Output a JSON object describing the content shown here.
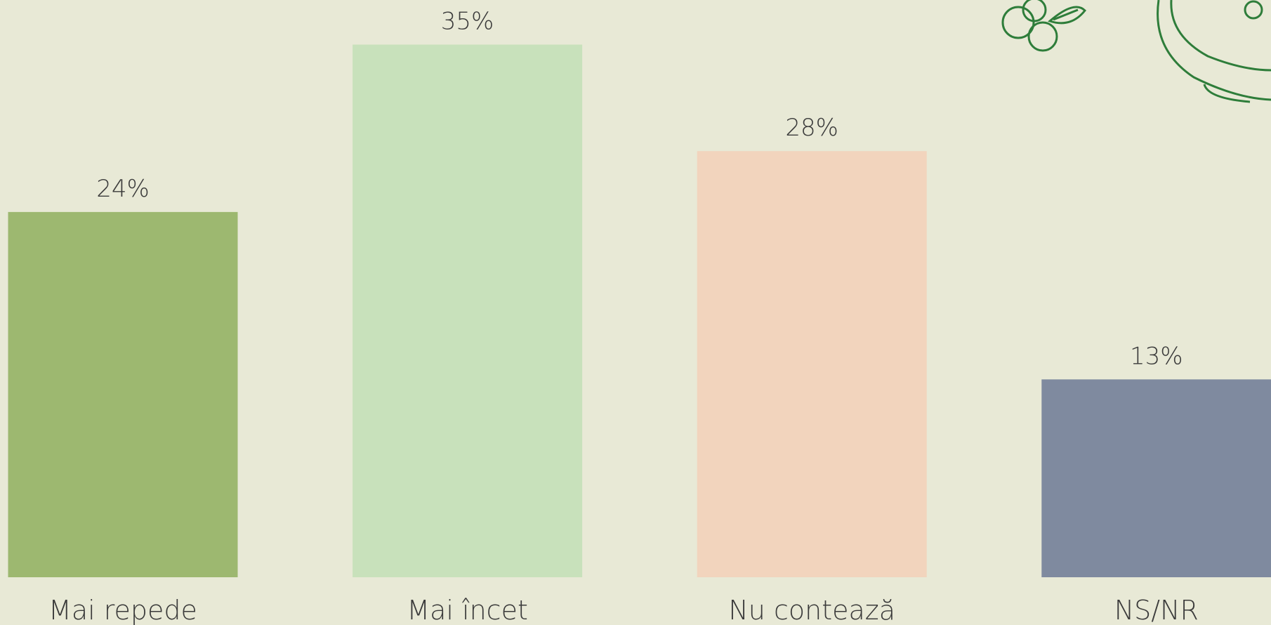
{
  "chart_data": {
    "type": "bar",
    "categories": [
      "Mai repede",
      "Mai încet",
      "Nu contează",
      "NS/NR"
    ],
    "values": [
      24,
      35,
      28,
      13
    ],
    "value_labels": [
      "24%",
      "35%",
      "28%",
      "13%"
    ],
    "colors": [
      "#9db870",
      "#c8e1bb",
      "#f2d4bd",
      "#7f8a9f"
    ]
  }
}
